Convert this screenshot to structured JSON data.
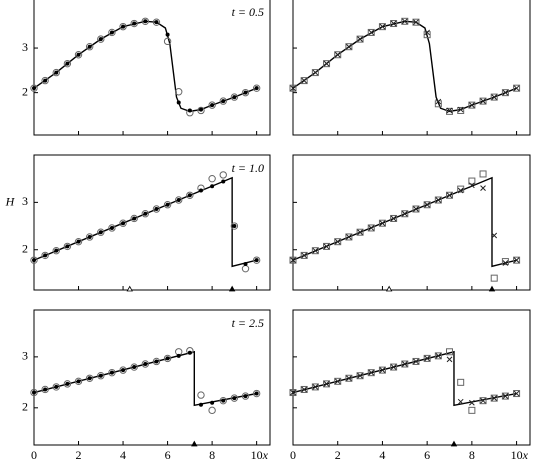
{
  "chart_data": [
    {
      "type": "line",
      "label": "t = 0.5",
      "xlim": [
        0,
        10.6
      ],
      "ylim": [
        1.05,
        4.1
      ],
      "xticks": [
        0,
        2,
        4,
        6,
        8,
        10
      ],
      "yticks": [
        2,
        3
      ],
      "series": [
        {
          "marker": "line",
          "color": "#000000",
          "x": [
            0,
            1,
            2,
            3,
            4,
            5,
            5.5,
            5.9,
            6.1,
            6.25,
            6.4,
            6.6,
            7,
            7.5,
            8,
            9,
            10
          ],
          "values": [
            2.1,
            2.45,
            2.85,
            3.2,
            3.48,
            3.6,
            3.58,
            3.45,
            3.1,
            2.5,
            1.9,
            1.65,
            1.58,
            1.62,
            1.72,
            1.9,
            2.1
          ]
        },
        {
          "marker": "circle",
          "color": "#666666",
          "x": [
            0,
            0.5,
            1,
            1.5,
            2,
            2.5,
            3,
            3.5,
            4,
            4.5,
            5,
            5.5,
            6,
            6.5,
            7,
            7.5,
            8,
            8.5,
            9,
            9.5,
            10
          ],
          "values": [
            2.1,
            2.27,
            2.45,
            2.65,
            2.85,
            3.03,
            3.2,
            3.35,
            3.48,
            3.55,
            3.6,
            3.58,
            3.15,
            2.02,
            1.55,
            1.6,
            1.72,
            1.81,
            1.9,
            2.0,
            2.1
          ]
        },
        {
          "marker": "dot",
          "color": "#000000",
          "x": [
            0,
            0.5,
            1,
            1.5,
            2,
            2.5,
            3,
            3.5,
            4,
            4.5,
            5,
            5.5,
            6,
            6.5,
            7,
            7.5,
            8,
            8.5,
            9,
            9.5,
            10
          ],
          "values": [
            2.1,
            2.27,
            2.45,
            2.65,
            2.85,
            3.03,
            3.2,
            3.35,
            3.48,
            3.55,
            3.6,
            3.58,
            3.3,
            1.78,
            1.6,
            1.62,
            1.72,
            1.81,
            1.9,
            2.0,
            2.1
          ]
        }
      ],
      "shocks": []
    },
    {
      "type": "line",
      "xlim": [
        0,
        10.6
      ],
      "ylim": [
        1.05,
        4.1
      ],
      "xticks": [
        0,
        2,
        4,
        6,
        8,
        10
      ],
      "yticks": [
        2,
        3
      ],
      "series": [
        {
          "marker": "line",
          "color": "#000000",
          "x": [
            0,
            1,
            2,
            3,
            4,
            5,
            5.5,
            5.9,
            6.1,
            6.25,
            6.4,
            6.6,
            7,
            7.5,
            8,
            9,
            10
          ],
          "values": [
            2.1,
            2.45,
            2.85,
            3.2,
            3.48,
            3.6,
            3.58,
            3.45,
            3.1,
            2.5,
            1.9,
            1.65,
            1.58,
            1.62,
            1.72,
            1.9,
            2.1
          ]
        },
        {
          "marker": "square",
          "color": "#666666",
          "x": [
            0,
            0.5,
            1,
            1.5,
            2,
            2.5,
            3,
            3.5,
            4,
            4.5,
            5,
            5.5,
            6,
            6.5,
            7,
            7.5,
            8,
            8.5,
            9,
            9.5,
            10
          ],
          "values": [
            2.1,
            2.27,
            2.45,
            2.65,
            2.85,
            3.03,
            3.2,
            3.35,
            3.48,
            3.55,
            3.6,
            3.58,
            3.3,
            1.75,
            1.58,
            1.6,
            1.72,
            1.81,
            1.9,
            2.0,
            2.1
          ]
        },
        {
          "marker": "cross",
          "color": "#222222",
          "x": [
            0,
            0.5,
            1,
            1.5,
            2,
            2.5,
            3,
            3.5,
            4,
            4.5,
            5,
            5.5,
            6,
            6.5,
            7,
            7.5,
            8,
            8.5,
            9,
            9.5,
            10
          ],
          "values": [
            2.1,
            2.27,
            2.45,
            2.65,
            2.85,
            3.03,
            3.2,
            3.35,
            3.48,
            3.55,
            3.6,
            3.58,
            3.35,
            1.8,
            1.6,
            1.62,
            1.72,
            1.81,
            1.9,
            2.0,
            2.1
          ]
        }
      ],
      "shocks": []
    },
    {
      "type": "line",
      "label": "t = 1.0",
      "ylabel": "H",
      "xlim": [
        0,
        10.6
      ],
      "ylim": [
        1.15,
        4.0
      ],
      "xticks": [
        0,
        2,
        4,
        6,
        8,
        10
      ],
      "yticks": [
        2,
        3
      ],
      "series": [
        {
          "marker": "line",
          "color": "#000000",
          "x": [
            0,
            8.9,
            8.9,
            10
          ],
          "values": [
            1.78,
            3.52,
            1.65,
            1.78
          ]
        },
        {
          "marker": "circle",
          "color": "#666666",
          "x": [
            0,
            0.5,
            1,
            1.5,
            2,
            2.5,
            3,
            3.5,
            4,
            4.5,
            5,
            5.5,
            6,
            6.5,
            7,
            7.5,
            8,
            8.5,
            9,
            9.5,
            10
          ],
          "values": [
            1.78,
            1.88,
            1.98,
            2.07,
            2.17,
            2.27,
            2.37,
            2.46,
            2.56,
            2.66,
            2.76,
            2.86,
            2.95,
            3.05,
            3.15,
            3.3,
            3.5,
            3.58,
            2.5,
            1.6,
            1.78
          ]
        },
        {
          "marker": "dot",
          "color": "#000000",
          "x": [
            0,
            0.5,
            1,
            1.5,
            2,
            2.5,
            3,
            3.5,
            4,
            4.5,
            5,
            5.5,
            6,
            6.5,
            7,
            7.5,
            8,
            8.5,
            9,
            9.5,
            10
          ],
          "values": [
            1.78,
            1.88,
            1.98,
            2.07,
            2.17,
            2.27,
            2.37,
            2.46,
            2.56,
            2.66,
            2.76,
            2.86,
            2.95,
            3.05,
            3.15,
            3.25,
            3.34,
            3.44,
            2.5,
            1.7,
            1.78
          ]
        }
      ],
      "shocks": [
        {
          "x": 4.3,
          "filled": false
        },
        {
          "x": 8.9,
          "filled": true
        }
      ]
    },
    {
      "type": "line",
      "xlim": [
        0,
        10.6
      ],
      "ylim": [
        1.15,
        4.0
      ],
      "xticks": [
        0,
        2,
        4,
        6,
        8,
        10
      ],
      "yticks": [
        2,
        3
      ],
      "series": [
        {
          "marker": "line",
          "color": "#000000",
          "x": [
            0,
            8.9,
            8.9,
            10
          ],
          "values": [
            1.78,
            3.52,
            1.65,
            1.78
          ]
        },
        {
          "marker": "square",
          "color": "#666666",
          "x": [
            0,
            0.5,
            1,
            1.5,
            2,
            2.5,
            3,
            3.5,
            4,
            4.5,
            5,
            5.5,
            6,
            6.5,
            7,
            7.5,
            8,
            8.5,
            9,
            9.5,
            10
          ],
          "values": [
            1.78,
            1.88,
            1.98,
            2.07,
            2.17,
            2.27,
            2.37,
            2.46,
            2.56,
            2.66,
            2.76,
            2.86,
            2.95,
            3.05,
            3.15,
            3.28,
            3.45,
            3.6,
            1.4,
            1.75,
            1.78
          ]
        },
        {
          "marker": "cross",
          "color": "#222222",
          "x": [
            0,
            0.5,
            1,
            1.5,
            2,
            2.5,
            3,
            3.5,
            4,
            4.5,
            5,
            5.5,
            6,
            6.5,
            7,
            7.5,
            8,
            8.5,
            9,
            9.5,
            10
          ],
          "values": [
            1.78,
            1.88,
            1.98,
            2.07,
            2.17,
            2.27,
            2.37,
            2.46,
            2.56,
            2.66,
            2.76,
            2.86,
            2.95,
            3.05,
            3.15,
            3.25,
            3.36,
            3.3,
            2.3,
            1.72,
            1.78
          ]
        }
      ],
      "shocks": [
        {
          "x": 4.3,
          "filled": false
        },
        {
          "x": 8.9,
          "filled": true
        }
      ]
    },
    {
      "type": "line",
      "label": "t = 2.5",
      "xlabel": "x",
      "xlim": [
        0,
        10.6
      ],
      "ylim": [
        1.27,
        3.92
      ],
      "xticks": [
        0,
        2,
        4,
        6,
        8,
        10
      ],
      "yticks": [
        2,
        3
      ],
      "series": [
        {
          "marker": "line",
          "color": "#000000",
          "x": [
            0,
            7.2,
            7.2,
            10
          ],
          "values": [
            2.3,
            3.1,
            2.05,
            2.28
          ]
        },
        {
          "marker": "circle",
          "color": "#666666",
          "x": [
            0,
            0.5,
            1,
            1.5,
            2,
            2.5,
            3,
            3.5,
            4,
            4.5,
            5,
            5.5,
            6,
            6.5,
            7,
            7.5,
            8,
            8.5,
            9,
            9.5,
            10
          ],
          "values": [
            2.3,
            2.36,
            2.41,
            2.47,
            2.52,
            2.58,
            2.63,
            2.69,
            2.74,
            2.8,
            2.86,
            2.91,
            2.97,
            3.1,
            3.12,
            2.25,
            1.95,
            2.14,
            2.19,
            2.23,
            2.28
          ]
        },
        {
          "marker": "dot",
          "color": "#000000",
          "x": [
            0,
            0.5,
            1,
            1.5,
            2,
            2.5,
            3,
            3.5,
            4,
            4.5,
            5,
            5.5,
            6,
            6.5,
            7,
            7.5,
            8,
            8.5,
            9,
            9.5,
            10
          ],
          "values": [
            2.3,
            2.36,
            2.41,
            2.47,
            2.52,
            2.58,
            2.63,
            2.69,
            2.74,
            2.8,
            2.86,
            2.91,
            2.97,
            3.02,
            3.08,
            2.06,
            2.1,
            2.14,
            2.19,
            2.23,
            2.28
          ]
        }
      ],
      "shocks": [
        {
          "x": 7.2,
          "filled": true
        }
      ]
    },
    {
      "type": "line",
      "xlabel": "x",
      "xlim": [
        0,
        10.6
      ],
      "ylim": [
        1.27,
        3.92
      ],
      "xticks": [
        0,
        2,
        4,
        6,
        8,
        10
      ],
      "yticks": [
        2,
        3
      ],
      "series": [
        {
          "marker": "line",
          "color": "#000000",
          "x": [
            0,
            7.2,
            7.2,
            10
          ],
          "values": [
            2.3,
            3.1,
            2.05,
            2.28
          ]
        },
        {
          "marker": "square",
          "color": "#666666",
          "x": [
            0,
            0.5,
            1,
            1.5,
            2,
            2.5,
            3,
            3.5,
            4,
            4.5,
            5,
            5.5,
            6,
            6.5,
            7,
            7.5,
            8,
            8.5,
            9,
            9.5,
            10
          ],
          "values": [
            2.3,
            2.36,
            2.41,
            2.47,
            2.52,
            2.58,
            2.63,
            2.69,
            2.74,
            2.8,
            2.86,
            2.91,
            2.97,
            3.02,
            3.1,
            2.5,
            1.95,
            2.14,
            2.19,
            2.23,
            2.28
          ]
        },
        {
          "marker": "cross",
          "color": "#222222",
          "x": [
            0,
            0.5,
            1,
            1.5,
            2,
            2.5,
            3,
            3.5,
            4,
            4.5,
            5,
            5.5,
            6,
            6.5,
            7,
            7.5,
            8,
            8.5,
            9,
            9.5,
            10
          ],
          "values": [
            2.3,
            2.36,
            2.41,
            2.47,
            2.52,
            2.58,
            2.63,
            2.69,
            2.74,
            2.8,
            2.86,
            2.91,
            2.97,
            3.02,
            2.95,
            2.12,
            2.1,
            2.14,
            2.19,
            2.23,
            2.28
          ]
        }
      ],
      "shocks": [
        {
          "x": 7.2,
          "filled": true
        }
      ]
    }
  ]
}
